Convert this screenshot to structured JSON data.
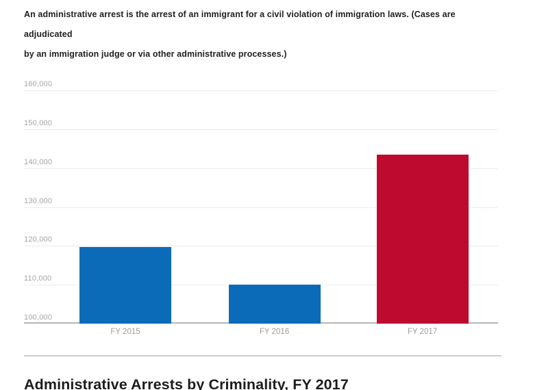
{
  "note": {
    "line1": "An administrative arrest is the arrest of an immigrant for a civil violation of immigration laws. (Cases are adjudicated",
    "line2": "by an immigration judge or via other administrative processes.)"
  },
  "chart_data": {
    "type": "bar",
    "title": "",
    "xlabel": "",
    "ylabel": "",
    "categories": [
      "FY 2015",
      "FY 2016",
      "FY 2017"
    ],
    "values": [
      119772,
      110104,
      143470
    ],
    "bar_colors": [
      "#0b6bb8",
      "#0b6bb8",
      "#bf0a30"
    ],
    "ylim": [
      100000,
      160000
    ],
    "ytick_step": 10000,
    "ytick_labels": [
      "100,000",
      "110,000",
      "120,000",
      "130,000",
      "140,000",
      "150,000",
      "160,000"
    ],
    "grid": true,
    "legend_position": "none"
  },
  "heading": "Administrative Arrests by Criminality, FY 2017",
  "colors": {
    "bar_blue": "#0b6bb8",
    "bar_red": "#bf0a30",
    "gridline": "#ececec",
    "axis_line": "#b5b5b5",
    "tick_text": "#a4a4a4"
  }
}
